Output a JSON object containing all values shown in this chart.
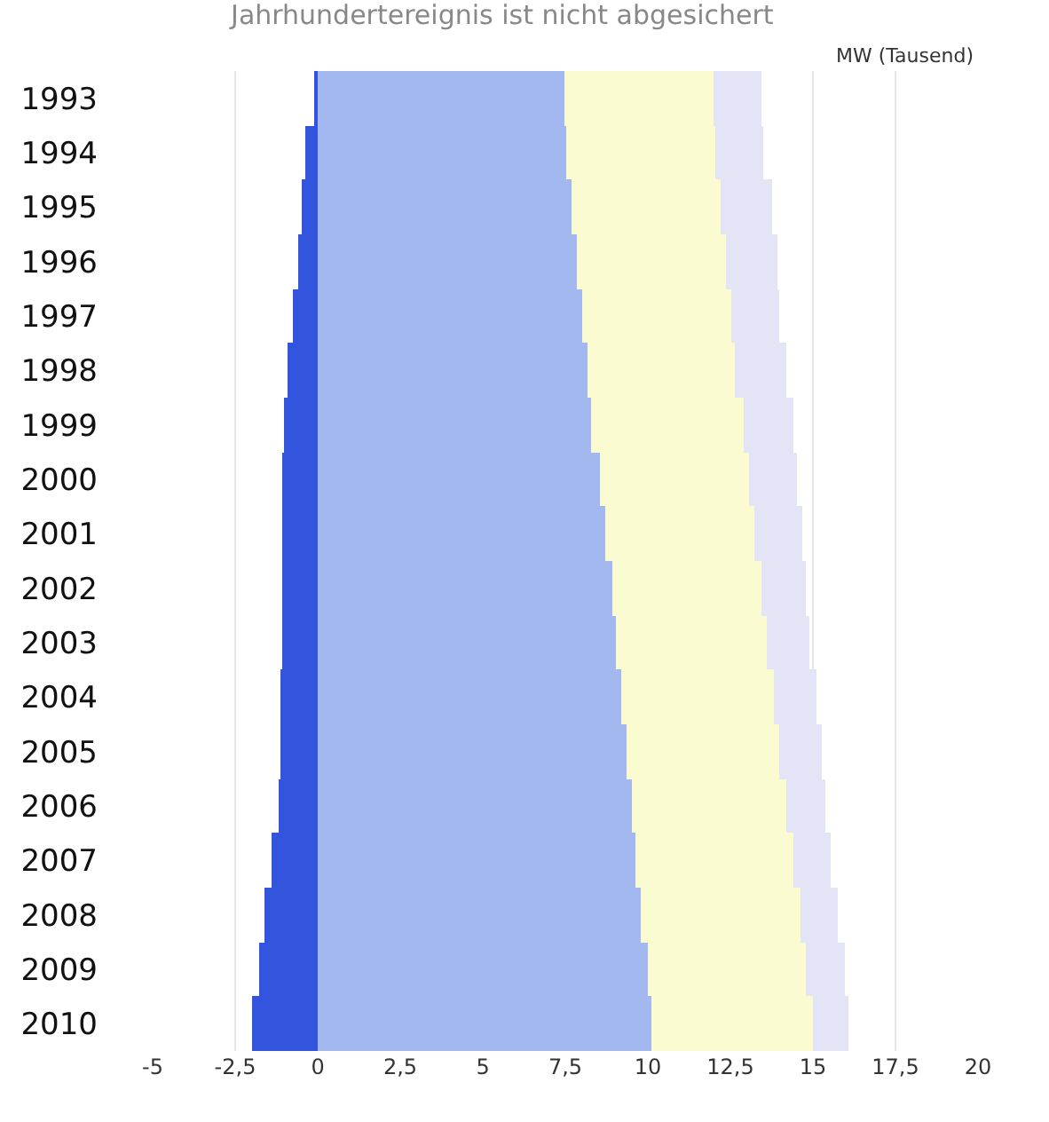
{
  "chart_data": {
    "type": "bar",
    "orientation": "horizontal",
    "stacked": true,
    "title": "Jahrhundertereignis ist nicht abgesichert",
    "xlabel": "MW (Tausend)",
    "categories": [
      "1993",
      "1994",
      "1995",
      "1996",
      "1997",
      "1998",
      "1999",
      "2000",
      "2001",
      "2002",
      "2003",
      "2004",
      "2005",
      "2006",
      "2007",
      "2008",
      "2009",
      "2010"
    ],
    "series": [
      {
        "color": "#3355dd",
        "values": [
          -0.1,
          -0.4,
          -0.5,
          -0.6,
          -0.75,
          -0.9,
          -1.0,
          -1.05,
          -1.1,
          -1.1,
          -1.1,
          -1.15,
          -1.15,
          -1.2,
          -1.4,
          -1.6,
          -1.8,
          -2.0
        ]
      },
      {
        "color": "#a4b8f0",
        "values": [
          7.45,
          7.5,
          7.7,
          7.85,
          8.0,
          8.15,
          8.3,
          8.55,
          8.7,
          8.9,
          9.05,
          9.2,
          9.35,
          9.5,
          9.65,
          9.8,
          10.0,
          10.1
        ]
      },
      {
        "color": "#fbfbd2",
        "values": [
          4.55,
          4.55,
          4.5,
          4.5,
          4.5,
          4.5,
          4.6,
          4.5,
          4.55,
          4.55,
          4.55,
          4.6,
          4.65,
          4.7,
          4.75,
          4.8,
          4.8,
          4.9
        ]
      },
      {
        "color": "#e3e4f5",
        "values": [
          1.45,
          1.45,
          1.55,
          1.55,
          1.5,
          1.55,
          1.5,
          1.45,
          1.45,
          1.35,
          1.3,
          1.3,
          1.25,
          1.2,
          1.15,
          1.15,
          1.15,
          1.1
        ]
      }
    ],
    "xlim": [
      -5,
      20
    ],
    "xticks": [
      -5,
      {
        "value": -2.5,
        "label": "-2,5"
      },
      0,
      {
        "value": 2.5,
        "label": "2,5"
      },
      5,
      {
        "value": 7.5,
        "label": "7,5"
      },
      10,
      {
        "value": 12.5,
        "label": "12,5"
      },
      15,
      {
        "value": 17.5,
        "label": "17,5"
      },
      20
    ],
    "grid": "x"
  }
}
